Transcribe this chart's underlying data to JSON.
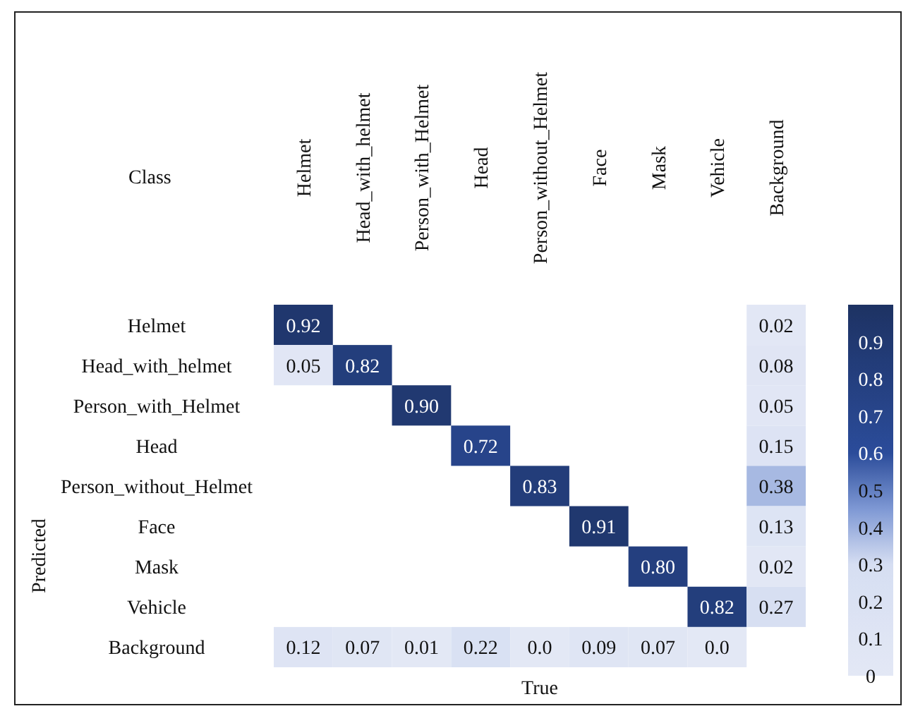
{
  "chart_data": {
    "type": "heatmap",
    "xlabel": "True",
    "ylabel": "Predicted",
    "annotations": [
      "Class"
    ],
    "categories": [
      "Helmet",
      "Head_with_helmet",
      "Person_with_Helmet",
      "Head",
      "Person_without_Helmet",
      "Face",
      "Mask",
      "Vehicle",
      "Background"
    ],
    "y_categories": [
      "Helmet",
      "Head_with_helmet",
      "Person_with_Helmet",
      "Head",
      "Person_without_Helmet",
      "Face",
      "Mask",
      "Vehicle",
      "Background"
    ],
    "cells": [
      [
        0.92,
        null,
        null,
        null,
        null,
        null,
        null,
        null,
        0.02
      ],
      [
        0.05,
        0.82,
        null,
        null,
        null,
        null,
        null,
        null,
        0.08
      ],
      [
        null,
        null,
        0.9,
        null,
        null,
        null,
        null,
        null,
        0.05
      ],
      [
        null,
        null,
        null,
        0.72,
        null,
        null,
        null,
        null,
        0.15
      ],
      [
        null,
        null,
        null,
        null,
        0.83,
        null,
        null,
        null,
        0.38
      ],
      [
        null,
        null,
        null,
        null,
        null,
        0.91,
        null,
        null,
        0.13
      ],
      [
        null,
        null,
        null,
        null,
        null,
        null,
        0.8,
        null,
        0.02
      ],
      [
        null,
        null,
        null,
        null,
        null,
        null,
        null,
        0.82,
        0.27
      ],
      [
        0.12,
        0.07,
        0.01,
        0.22,
        0.0,
        0.09,
        0.07,
        0.0,
        null
      ]
    ],
    "cell_labels": [
      [
        "0.92",
        null,
        null,
        null,
        null,
        null,
        null,
        null,
        "0.02"
      ],
      [
        "0.05",
        "0.82",
        null,
        null,
        null,
        null,
        null,
        null,
        "0.08"
      ],
      [
        null,
        null,
        "0.90",
        null,
        null,
        null,
        null,
        null,
        "0.05"
      ],
      [
        null,
        null,
        null,
        "0.72",
        null,
        null,
        null,
        null,
        "0.15"
      ],
      [
        null,
        null,
        null,
        null,
        "0.83",
        null,
        null,
        null,
        "0.38"
      ],
      [
        null,
        null,
        null,
        null,
        null,
        "0.91",
        null,
        null,
        "0.13"
      ],
      [
        null,
        null,
        null,
        null,
        null,
        null,
        "0.80",
        null,
        "0.02"
      ],
      [
        null,
        null,
        null,
        null,
        null,
        null,
        null,
        "0.82",
        "0.27"
      ],
      [
        "0.12",
        "0.07",
        "0.01",
        "0.22",
        "0.0",
        "0.09",
        "0.07",
        "0.0",
        null
      ]
    ],
    "clim": [
      0,
      1
    ],
    "cticks": [
      0,
      0.1,
      0.2,
      0.3,
      0.4,
      0.5,
      0.6,
      0.7,
      0.8,
      0.9
    ]
  }
}
